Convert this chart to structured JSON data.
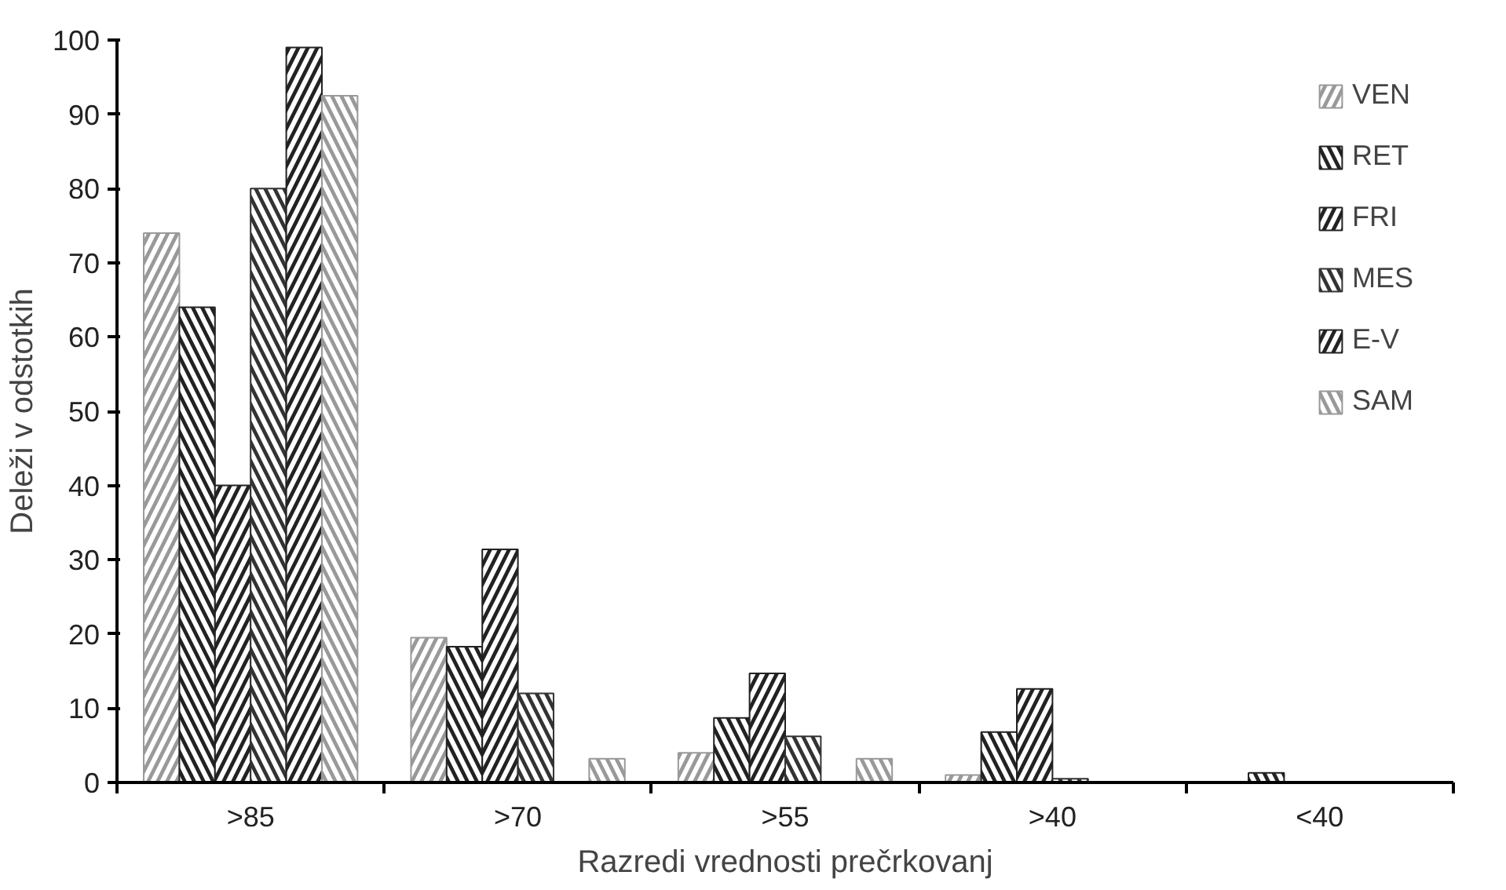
{
  "chart_data": {
    "type": "bar",
    "xlabel": "Razredi vrednosti prečrkovanj",
    "ylabel": "Deleži v odstotkih",
    "categories": [
      ">85",
      ">70",
      ">55",
      ">40",
      "<40"
    ],
    "series": [
      {
        "name": "VEN",
        "color": "#999999",
        "values": [
          74,
          19.5,
          4,
          1,
          0
        ]
      },
      {
        "name": "RET",
        "color": "#222222",
        "values": [
          64,
          18.3,
          8.7,
          6.8,
          1.3
        ]
      },
      {
        "name": "FRI",
        "color": "#222222",
        "values": [
          40,
          31.4,
          14.7,
          12.6,
          0
        ]
      },
      {
        "name": "MES",
        "color": "#333333",
        "values": [
          80,
          12,
          6.2,
          0.5,
          0
        ]
      },
      {
        "name": "E-V",
        "color": "#222222",
        "values": [
          99,
          0,
          0,
          0,
          0
        ]
      },
      {
        "name": "SAM",
        "color": "#999999",
        "values": [
          92.5,
          3.2,
          3.2,
          0,
          0
        ]
      }
    ],
    "ylim": [
      0,
      100
    ],
    "yticks": [
      0,
      10,
      20,
      30,
      40,
      50,
      60,
      70,
      80,
      90,
      100
    ],
    "grid": false,
    "legend": "top right"
  }
}
